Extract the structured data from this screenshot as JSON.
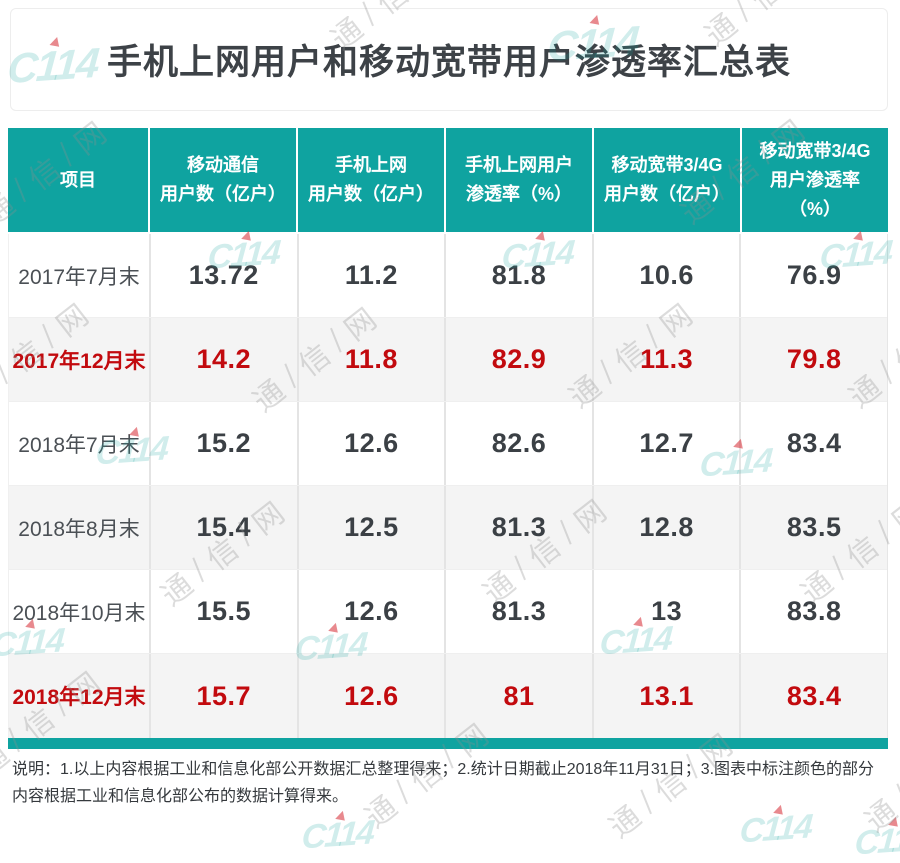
{
  "page": {
    "title": "手机上网用户和移动宽带用户渗透率汇总表"
  },
  "colors": {
    "accent_teal": "#0fa3a0",
    "highlight_red": "#c20a0e",
    "alt_row_bg": "#f4f4f4",
    "title_text": "#3d4247"
  },
  "watermark": {
    "logo_text": "C114",
    "characters": [
      "通",
      "信",
      "网"
    ]
  },
  "chart_data": {
    "type": "table",
    "title": "手机上网用户和移动宽带用户渗透率汇总表",
    "columns": [
      "项目",
      "移动通信用户数（亿户）",
      "手机上网用户数（亿户）",
      "手机上网用户渗透率（%）",
      "移动宽带3/4G用户数（亿户）",
      "移动宽带3/4G用户渗透率（%）"
    ],
    "column_lines": [
      [
        "项目"
      ],
      [
        "移动通信",
        "用户数（亿户）"
      ],
      [
        "手机上网",
        "用户数（亿户）"
      ],
      [
        "手机上网用户",
        "渗透率（%）"
      ],
      [
        "移动宽带3/4G",
        "用户数（亿户）"
      ],
      [
        "移动宽带3/4G",
        "用户渗透率",
        "（%）"
      ]
    ],
    "rows": [
      {
        "label": "2017年7月末",
        "values": [
          "13.72",
          "11.2",
          "81.8",
          "10.6",
          "76.9"
        ],
        "highlight": false
      },
      {
        "label": "2017年12月末",
        "values": [
          "14.2",
          "11.8",
          "82.9",
          "11.3",
          "79.8"
        ],
        "highlight": true
      },
      {
        "label": "2018年7月末",
        "values": [
          "15.2",
          "12.6",
          "82.6",
          "12.7",
          "83.4"
        ],
        "highlight": false
      },
      {
        "label": "2018年8月末",
        "values": [
          "15.4",
          "12.5",
          "81.3",
          "12.8",
          "83.5"
        ],
        "highlight": false
      },
      {
        "label": "2018年10月末",
        "values": [
          "15.5",
          "12.6",
          "81.3",
          "13",
          "83.8"
        ],
        "highlight": false
      },
      {
        "label": "2018年12月末",
        "values": [
          "15.7",
          "12.6",
          "81",
          "13.1",
          "83.4"
        ],
        "highlight": true
      }
    ],
    "highlighted_rows": [
      "2017年12月末",
      "2018年12月末"
    ],
    "note": "说明：1.以上内容根据工业和信息化部公开数据汇总整理得来；2.统计日期截止2018年11月31日；3.图表中标注颜色的部分内容根据工业和信息化部公布的数据计算得来。"
  }
}
